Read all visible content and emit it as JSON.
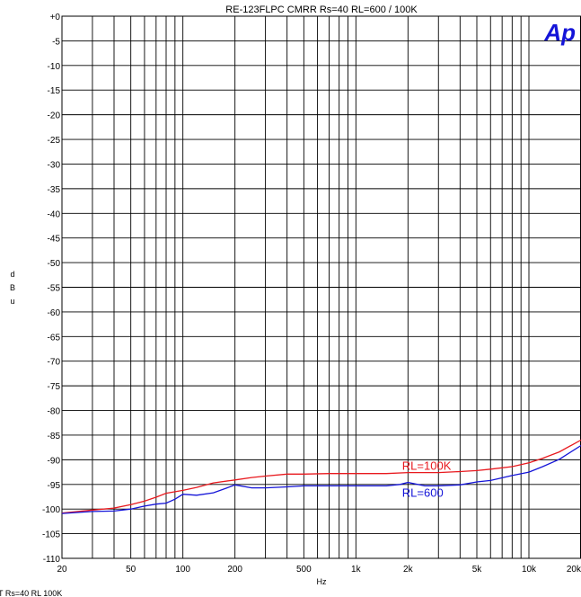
{
  "chart_data": {
    "type": "line",
    "title": "RE-123FLPC CMRR  Rs=40  RL=600 / 100K",
    "xlabel": "Hz",
    "ylabel": "dBu",
    "xscale": "log",
    "xlim": [
      20,
      20000
    ],
    "ylim": [
      -110,
      0
    ],
    "x_ticks": [
      {
        "value": 20,
        "label": "20"
      },
      {
        "value": 50,
        "label": "50"
      },
      {
        "value": 100,
        "label": "100"
      },
      {
        "value": 200,
        "label": "200"
      },
      {
        "value": 500,
        "label": "500"
      },
      {
        "value": 1000,
        "label": "1k"
      },
      {
        "value": 2000,
        "label": "2k"
      },
      {
        "value": 5000,
        "label": "5k"
      },
      {
        "value": 10000,
        "label": "10k"
      },
      {
        "value": 20000,
        "label": "20k"
      }
    ],
    "y_ticks": [
      {
        "value": 0,
        "label": "+0"
      },
      {
        "value": -5,
        "label": "-5"
      },
      {
        "value": -10,
        "label": "-10"
      },
      {
        "value": -15,
        "label": "-15"
      },
      {
        "value": -20,
        "label": "-20"
      },
      {
        "value": -25,
        "label": "-25"
      },
      {
        "value": -30,
        "label": "-30"
      },
      {
        "value": -35,
        "label": "-35"
      },
      {
        "value": -40,
        "label": "-40"
      },
      {
        "value": -45,
        "label": "-45"
      },
      {
        "value": -50,
        "label": "-50"
      },
      {
        "value": -55,
        "label": "-55"
      },
      {
        "value": -60,
        "label": "-60"
      },
      {
        "value": -65,
        "label": "-65"
      },
      {
        "value": -70,
        "label": "-70"
      },
      {
        "value": -75,
        "label": "-75"
      },
      {
        "value": -80,
        "label": "-80"
      },
      {
        "value": -85,
        "label": "-85"
      },
      {
        "value": -90,
        "label": "-90"
      },
      {
        "value": -95,
        "label": "-95"
      },
      {
        "value": -100,
        "label": "-100"
      },
      {
        "value": -105,
        "label": "-105"
      },
      {
        "value": -110,
        "label": "-110"
      }
    ],
    "grid": true,
    "series": [
      {
        "name": "RL=100K",
        "color": "#e8191e",
        "x": [
          20,
          30,
          40,
          50,
          60,
          70,
          80,
          100,
          120,
          150,
          200,
          250,
          300,
          400,
          500,
          700,
          1000,
          1500,
          2000,
          3000,
          4000,
          5000,
          6000,
          8000,
          10000,
          12000,
          15000,
          20000
        ],
        "y": [
          -100.8,
          -100.2,
          -99.8,
          -99.1,
          -98.4,
          -97.6,
          -96.8,
          -96.2,
          -95.6,
          -94.7,
          -94.1,
          -93.6,
          -93.3,
          -92.9,
          -92.9,
          -92.8,
          -92.8,
          -92.8,
          -92.6,
          -92.6,
          -92.4,
          -92.2,
          -91.9,
          -91.4,
          -90.6,
          -89.7,
          -88.4,
          -86.0
        ]
      },
      {
        "name": "RL=600",
        "color": "#1414d8",
        "x": [
          20,
          30,
          40,
          50,
          60,
          70,
          80,
          90,
          100,
          120,
          150,
          180,
          200,
          250,
          300,
          400,
          500,
          700,
          1000,
          1500,
          1800,
          2000,
          2500,
          3000,
          4000,
          5000,
          6000,
          8000,
          10000,
          12000,
          15000,
          20000
        ],
        "y": [
          -100.9,
          -100.5,
          -100.4,
          -100.0,
          -99.4,
          -99.0,
          -98.8,
          -98.0,
          -97.0,
          -97.2,
          -96.7,
          -95.7,
          -95.1,
          -95.7,
          -95.7,
          -95.5,
          -95.3,
          -95.3,
          -95.3,
          -95.3,
          -95.0,
          -94.6,
          -95.3,
          -95.3,
          -95.1,
          -94.5,
          -94.2,
          -93.2,
          -92.5,
          -91.4,
          -89.9,
          -87.1
        ]
      }
    ],
    "annotations": [
      {
        "text": "RL=100K",
        "x": 1850,
        "y": -92.0,
        "color": "#e8191e"
      },
      {
        "text": "RL=600",
        "x": 1850,
        "y": -97.5,
        "color": "#1414d8"
      }
    ]
  },
  "logo": {
    "text": "Ap",
    "color": "#1414d8"
  },
  "footer_text": "T  Rs=40  RL 100K"
}
